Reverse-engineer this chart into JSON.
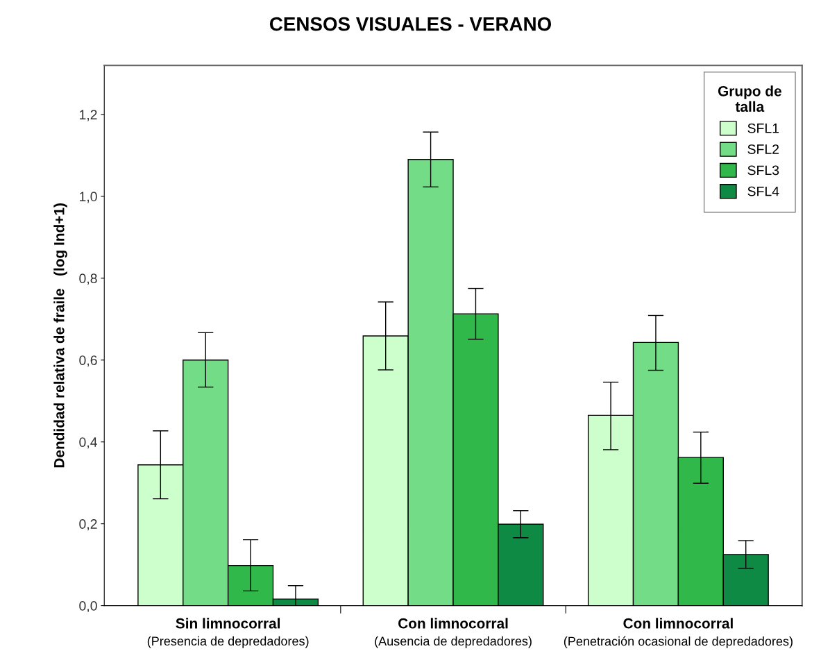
{
  "chart_data": {
    "type": "bar",
    "title": "CENSOS VISUALES - VERANO",
    "ylabel": "Dendidad relativa de fraile   (log Ind+1)",
    "legend_title": "Grupo de\ntalla",
    "categories": [
      "Sin limnocorral\n(Presencia de depredadores)",
      "Con limnocorral\n(Ausencia de depredadores)",
      "Con limnocorral\n(Penetración ocasional de depredadores)"
    ],
    "series": [
      {
        "name": "SFL1",
        "color": "#ccffcc",
        "values": [
          0.344,
          0.659,
          0.465
        ],
        "errors": [
          [
            0.261,
            0.427
          ],
          [
            0.576,
            0.742
          ],
          [
            0.381,
            0.546
          ]
        ]
      },
      {
        "name": "SFL2",
        "color": "#72dd86",
        "values": [
          0.6,
          1.09,
          0.643
        ],
        "errors": [
          [
            0.534,
            0.667
          ],
          [
            1.023,
            1.157
          ],
          [
            0.575,
            0.709
          ]
        ]
      },
      {
        "name": "SFL3",
        "color": "#31b84a",
        "values": [
          0.098,
          0.713,
          0.362
        ],
        "errors": [
          [
            0.036,
            0.161
          ],
          [
            0.651,
            0.775
          ],
          [
            0.299,
            0.424
          ]
        ]
      },
      {
        "name": "SFL4",
        "color": "#0f8a45",
        "values": [
          0.016,
          0.199,
          0.125
        ],
        "errors": [
          [
            0.0,
            0.049
          ],
          [
            0.166,
            0.232
          ],
          [
            0.091,
            0.159
          ]
        ]
      }
    ],
    "ylim": [
      0,
      1.32
    ],
    "yticks": [
      {
        "value": 0,
        "label": "0,0"
      },
      {
        "value": 0.2,
        "label": "0,2"
      },
      {
        "value": 0.4,
        "label": "0,4"
      },
      {
        "value": 0.6,
        "label": "0,6"
      },
      {
        "value": 0.8,
        "label": "0,8"
      },
      {
        "value": 1.0,
        "label": "1,0"
      },
      {
        "value": 1.2,
        "label": "1,2"
      }
    ],
    "grid": false,
    "legend": "top right"
  }
}
